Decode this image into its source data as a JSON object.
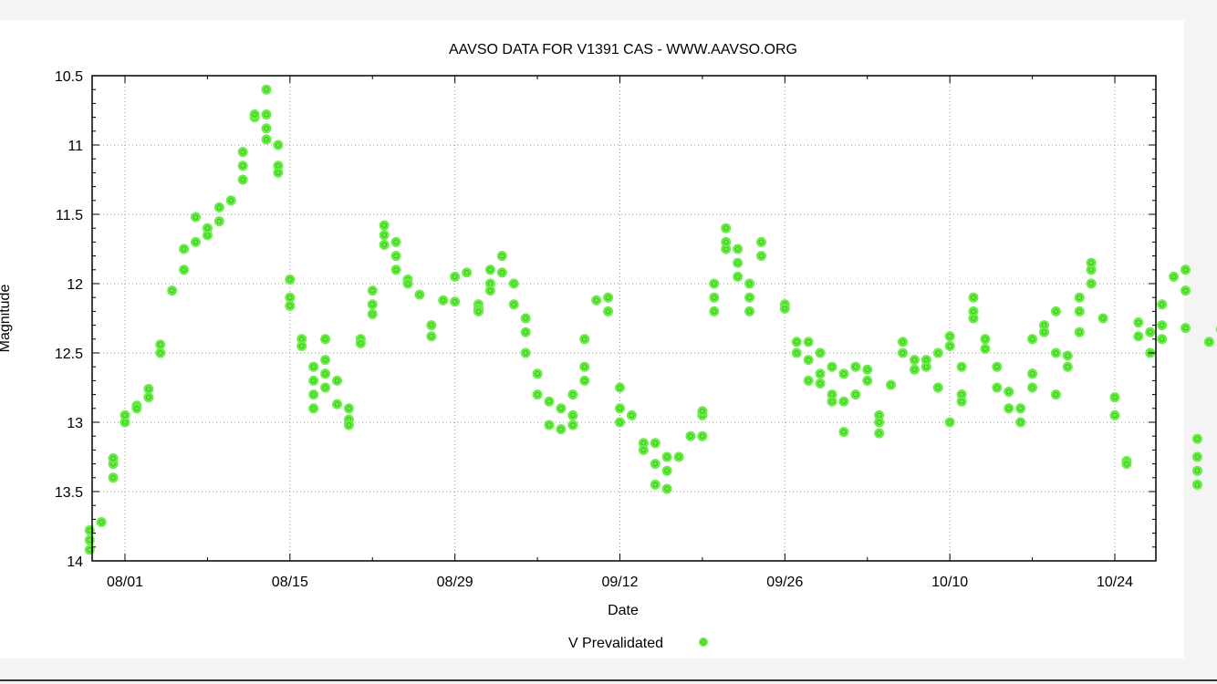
{
  "chart_data": {
    "type": "scatter",
    "title": "AAVSO DATA FOR V1391 CAS - WWW.AAVSO.ORG",
    "xlabel": "Date",
    "ylabel": "Magnitude",
    "x_ticks": [
      "08/01",
      "08/15",
      "08/29",
      "09/12",
      "09/26",
      "10/10",
      "10/24"
    ],
    "y_ticks": [
      "10.5",
      "11",
      "11.5",
      "12",
      "12.5",
      "13",
      "13.5",
      "14"
    ],
    "ylim": [
      10.5,
      14
    ],
    "y_inverted": true,
    "grid": true,
    "legend_position": "bottom-center",
    "color": "#66ee44",
    "series": [
      {
        "name": "V Prevalidated",
        "points": [
          [
            "07-29",
            13.92
          ],
          [
            "07-29",
            13.85
          ],
          [
            "07-29",
            13.78
          ],
          [
            "07-30",
            13.72
          ],
          [
            "07-31",
            13.4
          ],
          [
            "07-31",
            13.3
          ],
          [
            "07-31",
            13.26
          ],
          [
            "08-01",
            13.0
          ],
          [
            "08-01",
            12.95
          ],
          [
            "08-02",
            12.88
          ],
          [
            "08-02",
            12.9
          ],
          [
            "08-03",
            12.82
          ],
          [
            "08-03",
            12.76
          ],
          [
            "08-04",
            12.5
          ],
          [
            "08-04",
            12.44
          ],
          [
            "08-05",
            12.05
          ],
          [
            "08-06",
            11.9
          ],
          [
            "08-06",
            11.75
          ],
          [
            "08-07",
            11.52
          ],
          [
            "08-07",
            11.7
          ],
          [
            "08-08",
            11.65
          ],
          [
            "08-08",
            11.6
          ],
          [
            "08-09",
            11.55
          ],
          [
            "08-09",
            11.45
          ],
          [
            "08-10",
            11.4
          ],
          [
            "08-11",
            11.25
          ],
          [
            "08-11",
            11.15
          ],
          [
            "08-11",
            11.05
          ],
          [
            "08-12",
            10.8
          ],
          [
            "08-12",
            10.78
          ],
          [
            "08-13",
            10.6
          ],
          [
            "08-13",
            10.78
          ],
          [
            "08-13",
            10.88
          ],
          [
            "08-13",
            10.96
          ],
          [
            "08-14",
            11.0
          ],
          [
            "08-14",
            11.15
          ],
          [
            "08-14",
            11.2
          ],
          [
            "08-15",
            11.97
          ],
          [
            "08-15",
            12.1
          ],
          [
            "08-15",
            12.16
          ],
          [
            "08-16",
            12.4
          ],
          [
            "08-16",
            12.45
          ],
          [
            "08-17",
            12.6
          ],
          [
            "08-17",
            12.7
          ],
          [
            "08-17",
            12.8
          ],
          [
            "08-17",
            12.9
          ],
          [
            "08-18",
            12.55
          ],
          [
            "08-18",
            12.65
          ],
          [
            "08-18",
            12.75
          ],
          [
            "08-18",
            12.4
          ],
          [
            "08-19",
            12.7
          ],
          [
            "08-19",
            12.87
          ],
          [
            "08-20",
            12.9
          ],
          [
            "08-20",
            12.98
          ],
          [
            "08-20",
            13.02
          ],
          [
            "08-21",
            12.4
          ],
          [
            "08-21",
            12.43
          ],
          [
            "08-22",
            12.05
          ],
          [
            "08-22",
            12.15
          ],
          [
            "08-22",
            12.22
          ],
          [
            "08-23",
            11.58
          ],
          [
            "08-23",
            11.65
          ],
          [
            "08-23",
            11.72
          ],
          [
            "08-24",
            11.7
          ],
          [
            "08-24",
            11.8
          ],
          [
            "08-24",
            11.9
          ],
          [
            "08-25",
            11.97
          ],
          [
            "08-25",
            12.0
          ],
          [
            "08-26",
            12.08
          ],
          [
            "08-27",
            12.3
          ],
          [
            "08-27",
            12.38
          ],
          [
            "08-28",
            12.12
          ],
          [
            "08-29",
            11.95
          ],
          [
            "08-29",
            12.13
          ],
          [
            "08-30",
            11.92
          ],
          [
            "08-31",
            12.15
          ],
          [
            "08-31",
            12.18
          ],
          [
            "08-31",
            12.2
          ],
          [
            "09-01",
            11.9
          ],
          [
            "09-01",
            12.0
          ],
          [
            "09-01",
            12.05
          ],
          [
            "09-02",
            11.8
          ],
          [
            "09-02",
            11.92
          ],
          [
            "09-03",
            12.0
          ],
          [
            "09-03",
            12.15
          ],
          [
            "09-04",
            12.25
          ],
          [
            "09-04",
            12.35
          ],
          [
            "09-04",
            12.5
          ],
          [
            "09-05",
            12.65
          ],
          [
            "09-05",
            12.8
          ],
          [
            "09-06",
            13.02
          ],
          [
            "09-06",
            12.85
          ],
          [
            "09-07",
            12.9
          ],
          [
            "09-07",
            13.05
          ],
          [
            "09-08",
            12.8
          ],
          [
            "09-08",
            12.95
          ],
          [
            "09-08",
            13.02
          ],
          [
            "09-09",
            12.4
          ],
          [
            "09-09",
            12.6
          ],
          [
            "09-09",
            12.7
          ],
          [
            "09-10",
            12.12
          ],
          [
            "09-11",
            12.1
          ],
          [
            "09-11",
            12.2
          ],
          [
            "09-12",
            12.75
          ],
          [
            "09-12",
            12.9
          ],
          [
            "09-12",
            13.0
          ],
          [
            "09-13",
            12.95
          ],
          [
            "09-14",
            13.15
          ],
          [
            "09-14",
            13.2
          ],
          [
            "09-15",
            13.3
          ],
          [
            "09-15",
            13.45
          ],
          [
            "09-15",
            13.15
          ],
          [
            "09-16",
            13.25
          ],
          [
            "09-16",
            13.35
          ],
          [
            "09-16",
            13.48
          ],
          [
            "09-17",
            13.25
          ],
          [
            "09-18",
            13.1
          ],
          [
            "09-19",
            12.95
          ],
          [
            "09-19",
            13.1
          ],
          [
            "09-19",
            12.92
          ],
          [
            "09-20",
            12.2
          ],
          [
            "09-20",
            12.1
          ],
          [
            "09-20",
            12.0
          ],
          [
            "09-21",
            11.75
          ],
          [
            "09-21",
            11.6
          ],
          [
            "09-21",
            11.7
          ],
          [
            "09-22",
            11.75
          ],
          [
            "09-22",
            11.85
          ],
          [
            "09-22",
            11.95
          ],
          [
            "09-23",
            12.0
          ],
          [
            "09-23",
            12.1
          ],
          [
            "09-23",
            12.2
          ],
          [
            "09-24",
            11.8
          ],
          [
            "09-24",
            11.7
          ],
          [
            "09-26",
            12.15
          ],
          [
            "09-26",
            12.18
          ],
          [
            "09-27",
            12.42
          ],
          [
            "09-27",
            12.5
          ],
          [
            "09-28",
            12.55
          ],
          [
            "09-28",
            12.42
          ],
          [
            "09-28",
            12.7
          ],
          [
            "09-29",
            12.5
          ],
          [
            "09-29",
            12.65
          ],
          [
            "09-29",
            12.72
          ],
          [
            "09-30",
            12.6
          ],
          [
            "09-30",
            12.8
          ],
          [
            "09-30",
            12.85
          ],
          [
            "10-01",
            12.65
          ],
          [
            "10-01",
            12.85
          ],
          [
            "10-01",
            13.07
          ],
          [
            "10-02",
            12.6
          ],
          [
            "10-02",
            12.8
          ],
          [
            "10-03",
            12.62
          ],
          [
            "10-03",
            12.7
          ],
          [
            "10-04",
            12.95
          ],
          [
            "10-04",
            13.0
          ],
          [
            "10-04",
            13.08
          ],
          [
            "10-05",
            12.73
          ],
          [
            "10-06",
            12.5
          ],
          [
            "10-06",
            12.42
          ],
          [
            "10-07",
            12.55
          ],
          [
            "10-07",
            12.62
          ],
          [
            "10-08",
            12.6
          ],
          [
            "10-08",
            12.55
          ],
          [
            "10-09",
            12.5
          ],
          [
            "10-09",
            12.75
          ],
          [
            "10-10",
            12.45
          ],
          [
            "10-10",
            12.38
          ],
          [
            "10-10",
            13.0
          ],
          [
            "10-11",
            12.6
          ],
          [
            "10-11",
            12.8
          ],
          [
            "10-11",
            12.85
          ],
          [
            "10-12",
            12.25
          ],
          [
            "10-12",
            12.1
          ],
          [
            "10-12",
            12.2
          ],
          [
            "10-13",
            12.4
          ],
          [
            "10-13",
            12.47
          ],
          [
            "10-14",
            12.6
          ],
          [
            "10-14",
            12.75
          ],
          [
            "10-15",
            12.78
          ],
          [
            "10-15",
            12.9
          ],
          [
            "10-16",
            12.9
          ],
          [
            "10-16",
            13.0
          ],
          [
            "10-17",
            12.65
          ],
          [
            "10-17",
            12.4
          ],
          [
            "10-17",
            12.75
          ],
          [
            "10-18",
            12.3
          ],
          [
            "10-18",
            12.35
          ],
          [
            "10-19",
            12.2
          ],
          [
            "10-19",
            12.5
          ],
          [
            "10-19",
            12.8
          ],
          [
            "10-20",
            12.6
          ],
          [
            "10-20",
            12.52
          ],
          [
            "10-21",
            12.35
          ],
          [
            "10-21",
            12.2
          ],
          [
            "10-21",
            12.1
          ],
          [
            "10-22",
            11.9
          ],
          [
            "10-22",
            11.85
          ],
          [
            "10-22",
            12.0
          ],
          [
            "10-23",
            12.25
          ],
          [
            "10-24",
            12.82
          ],
          [
            "10-24",
            12.95
          ],
          [
            "10-25",
            13.28
          ],
          [
            "10-25",
            13.3
          ],
          [
            "10-26",
            12.38
          ],
          [
            "10-26",
            12.28
          ],
          [
            "10-27",
            12.35
          ],
          [
            "10-27",
            12.5
          ],
          [
            "10-28",
            12.3
          ],
          [
            "10-28",
            12.4
          ],
          [
            "10-28",
            12.15
          ],
          [
            "10-29",
            11.95
          ],
          [
            "10-30",
            11.9
          ],
          [
            "10-30",
            12.05
          ],
          [
            "10-30",
            12.32
          ],
          [
            "10-31",
            13.45
          ],
          [
            "10-31",
            13.35
          ],
          [
            "10-31",
            13.25
          ],
          [
            "10-31",
            13.12
          ],
          [
            "11-01",
            12.42
          ],
          [
            "11-02",
            12.33
          ]
        ]
      }
    ]
  }
}
